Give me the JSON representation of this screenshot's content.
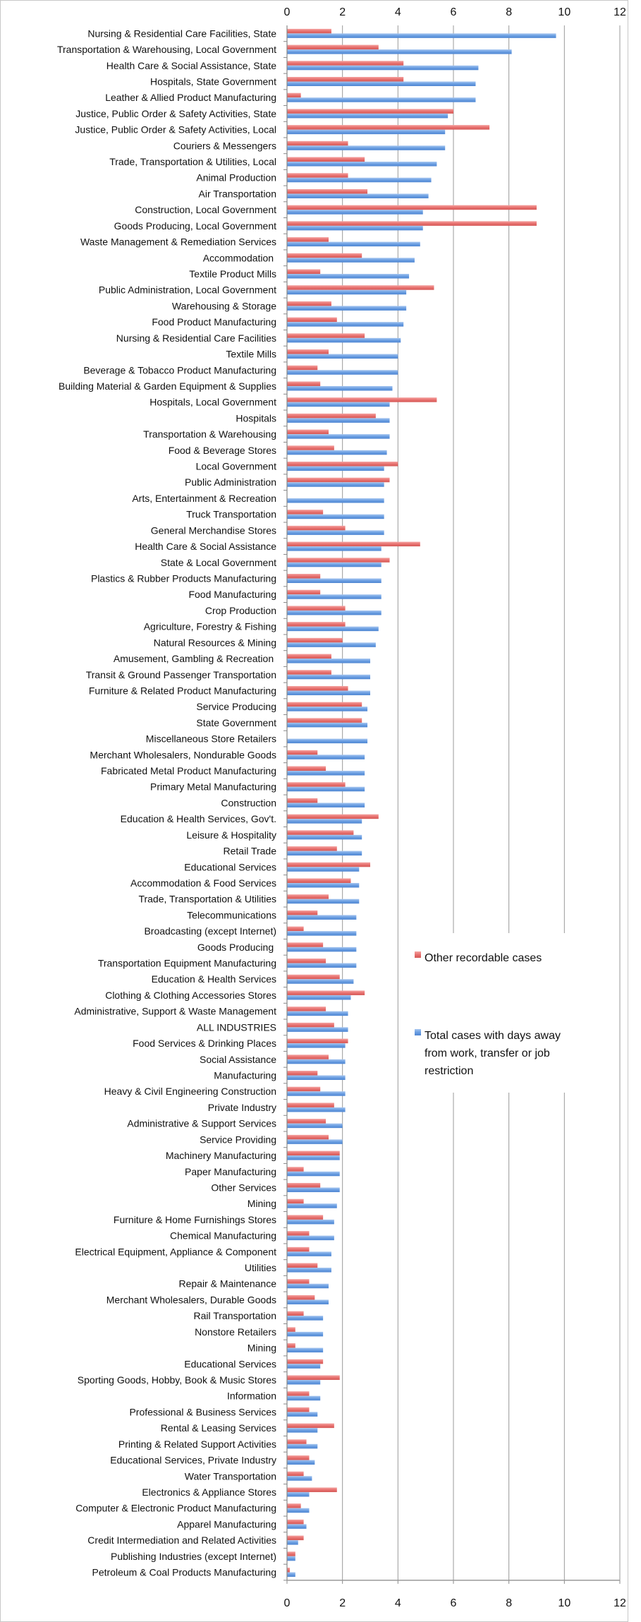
{
  "chart_data": {
    "type": "bar",
    "orientation": "horizontal",
    "xlim": [
      0,
      12
    ],
    "x_ticks": [
      "0",
      "2",
      "4",
      "6",
      "8",
      "10",
      "12"
    ],
    "grid": true,
    "legend_placement": "right-middle",
    "colors": {
      "other_recordable": "#e8716f",
      "days_away": "#6a9ee2"
    },
    "categories": [
      "Nursing & Residential Care Facilities, State",
      "Transportation & Warehousing, Local Government",
      "Health Care & Social Assistance, State",
      "Hospitals, State Government",
      "Leather & Allied Product Manufacturing",
      "Justice, Public Order & Safety Activities, State",
      "Justice, Public Order & Safety Activities, Local",
      "Couriers & Messengers",
      "Trade, Transportation & Utilities, Local",
      "Animal Production",
      "Air Transportation",
      "Construction, Local Government",
      "Goods Producing, Local Government",
      "Waste Management & Remediation Services",
      "Accommodation ",
      "Textile Product Mills",
      "Public Administration, Local Government",
      "Warehousing & Storage",
      "Food Product Manufacturing",
      "Nursing & Residential Care Facilities",
      "Textile Mills",
      "Beverage & Tobacco Product Manufacturing",
      "Building Material & Garden Equipment & Supplies",
      "Hospitals, Local Government",
      "Hospitals",
      "Transportation & Warehousing",
      "Food & Beverage Stores",
      "Local Government",
      "Public Administration",
      "Arts, Entertainment & Recreation",
      "Truck Transportation",
      "General Merchandise Stores",
      "Health Care & Social Assistance",
      "State & Local Government",
      "Plastics & Rubber Products Manufacturing",
      "Food Manufacturing",
      "Crop Production",
      "Agriculture, Forestry & Fishing",
      "Natural Resources & Mining",
      "Amusement, Gambling & Recreation ",
      "Transit & Ground Passenger Transportation",
      "Furniture & Related Product Manufacturing",
      "Service Producing",
      "State Government",
      "Miscellaneous Store Retailers",
      "Merchant Wholesalers, Nondurable Goods",
      "Fabricated Metal Product Manufacturing",
      "Primary Metal Manufacturing",
      "Construction",
      "Education & Health Services, Gov't.",
      "Leisure & Hospitality",
      "Retail Trade",
      "Educational Services",
      "Accommodation & Food Services",
      "Trade, Transportation & Utilities",
      "Telecommunications",
      "Broadcasting (except Internet)",
      "Goods Producing ",
      "Transportation Equipment Manufacturing",
      "Education & Health Services",
      "Clothing & Clothing Accessories Stores",
      "Administrative, Support & Waste Management",
      "ALL INDUSTRIES",
      "Food Services & Drinking Places",
      "Social Assistance",
      "Manufacturing",
      "Heavy & Civil Engineering Construction",
      "Private Industry",
      "Administrative & Support Services",
      "Service Providing",
      "Machinery Manufacturing",
      "Paper Manufacturing",
      "Other Services",
      "Mining",
      "Furniture & Home Furnishings Stores",
      "Chemical Manufacturing",
      "Electrical Equipment, Appliance & Component",
      "Utilities",
      "Repair & Maintenance",
      "Merchant Wholesalers, Durable Goods",
      "Rail Transportation",
      "Nonstore Retailers",
      "Mining",
      "Educational Services",
      "Sporting Goods, Hobby, Book & Music Stores",
      "Information",
      "Professional & Business Services",
      "Rental & Leasing Services",
      "Printing & Related Support Activities",
      "Educational Services, Private Industry",
      "Water Transportation",
      "Electronics & Appliance Stores",
      "Computer & Electronic Product Manufacturing",
      "Apparel Manufacturing",
      "Credit Intermediation and Related Activities",
      "Publishing Industries (except Internet)",
      "Petroleum & Coal Products Manufacturing"
    ],
    "series": [
      {
        "name": "Other recordable cases",
        "values": [
          1.6,
          3.3,
          4.2,
          4.2,
          0.5,
          6.0,
          7.3,
          2.2,
          2.8,
          2.2,
          2.9,
          9.0,
          9.0,
          1.5,
          2.7,
          1.2,
          5.3,
          1.6,
          1.8,
          2.8,
          1.5,
          1.1,
          1.2,
          5.4,
          3.2,
          1.5,
          1.7,
          4.0,
          3.7,
          0,
          1.3,
          2.1,
          4.8,
          3.7,
          1.2,
          1.2,
          2.1,
          2.1,
          2.0,
          1.6,
          1.6,
          2.2,
          2.7,
          2.7,
          0,
          1.1,
          1.4,
          2.1,
          1.1,
          3.3,
          2.4,
          1.8,
          3.0,
          2.3,
          1.5,
          1.1,
          0.6,
          1.3,
          1.4,
          1.9,
          2.8,
          1.4,
          1.7,
          2.2,
          1.5,
          1.1,
          1.2,
          1.7,
          1.4,
          1.5,
          1.9,
          0.6,
          1.2,
          0.6,
          1.3,
          0.8,
          0.8,
          1.1,
          0.8,
          1.0,
          0.6,
          0.3,
          0.3,
          1.3,
          1.9,
          0.8,
          0.8,
          1.7,
          0.7,
          0.8,
          0.6,
          1.8,
          0.5,
          0.6,
          0.6,
          0.3,
          0.1
        ]
      },
      {
        "name": "Total cases with days away from work, transfer or job restriction",
        "values": [
          9.7,
          8.1,
          6.9,
          6.8,
          6.8,
          5.8,
          5.7,
          5.7,
          5.4,
          5.2,
          5.1,
          4.9,
          4.9,
          4.8,
          4.6,
          4.4,
          4.3,
          4.3,
          4.2,
          4.1,
          4.0,
          4.0,
          3.8,
          3.7,
          3.7,
          3.7,
          3.6,
          3.5,
          3.5,
          3.5,
          3.5,
          3.5,
          3.4,
          3.4,
          3.4,
          3.4,
          3.4,
          3.3,
          3.2,
          3.0,
          3.0,
          3.0,
          2.9,
          2.9,
          2.9,
          2.8,
          2.8,
          2.8,
          2.8,
          2.7,
          2.7,
          2.7,
          2.6,
          2.6,
          2.6,
          2.5,
          2.5,
          2.5,
          2.5,
          2.4,
          2.3,
          2.2,
          2.2,
          2.1,
          2.1,
          2.1,
          2.1,
          2.1,
          2.0,
          2.0,
          1.9,
          1.9,
          1.9,
          1.8,
          1.7,
          1.7,
          1.6,
          1.6,
          1.5,
          1.5,
          1.3,
          1.3,
          1.3,
          1.2,
          1.2,
          1.2,
          1.1,
          1.1,
          1.1,
          1.0,
          0.9,
          0.8,
          0.8,
          0.7,
          0.4,
          0.3,
          0.3
        ]
      }
    ],
    "legend": {
      "entry1_text": "Other recordable cases",
      "entry2_lines": [
        "Total cases with days away",
        "from work, transfer or job",
        "restriction"
      ]
    }
  }
}
